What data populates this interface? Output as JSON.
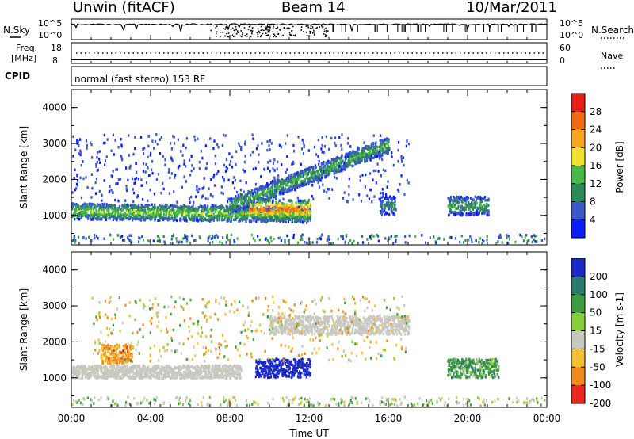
{
  "header": {
    "station": "Unwin (fitACF)",
    "beam": "Beam 14",
    "date": "10/Mar/2011"
  },
  "strips": {
    "nsky_label": "N.Sky",
    "nsearch_label": "N.Search",
    "nsky_scale": [
      "10^5",
      "10^0"
    ],
    "nsearch_scale": [
      "10^5",
      "10^0"
    ],
    "freq_label": "Freq.",
    "freq_unit": "[MHz]",
    "freq_scale": [
      "18",
      "8"
    ],
    "nave_label": "Nave",
    "nave_scale": [
      "60",
      "0"
    ],
    "cpid_label": "CPID",
    "cpid_text": "normal (fast stereo) 153 RF"
  },
  "chart_data": [
    {
      "type": "heatmap",
      "title": "Power",
      "ylabel": "Slant Range [km]",
      "xlabel": "",
      "xlim": [
        "00:00",
        "00:00"
      ],
      "ylim": [
        180,
        4500
      ],
      "y_ticks": [
        "1000",
        "2000",
        "3000",
        "4000"
      ],
      "colorbar": {
        "label": "Power [dB]",
        "ticks": [
          "4",
          "8",
          "12",
          "16",
          "20",
          "24",
          "28"
        ],
        "colors": [
          "#0a1eff",
          "#3a57c9",
          "#2e8a54",
          "#45b845",
          "#f0e12a",
          "#f7a51e",
          "#f06a14",
          "#e61e14"
        ]
      },
      "features": [
        {
          "name": "band",
          "t_start": 0.0,
          "t_end": 12.0,
          "range_start": 1150,
          "range_end": 1050,
          "power": 16
        },
        {
          "name": "upper band",
          "t_start": 8.0,
          "t_end": 16.0,
          "range_start": 1300,
          "range_end": 3000,
          "power": 14
        },
        {
          "name": "patch",
          "t_start": 9.0,
          "t_end": 12.0,
          "range": 1200,
          "power": 26
        },
        {
          "name": "patch",
          "t_start": 15.6,
          "t_end": 16.3,
          "range": 1300,
          "power": 10
        },
        {
          "name": "patch",
          "t_start": 19.0,
          "t_end": 21.0,
          "range": 1300,
          "power": 12
        }
      ]
    },
    {
      "type": "heatmap",
      "title": "Velocity",
      "ylabel": "Slant Range [km]",
      "xlabel": "Time UT",
      "x_ticks": [
        "00:00",
        "04:00",
        "08:00",
        "12:00",
        "16:00",
        "20:00",
        "00:00"
      ],
      "ylim": [
        180,
        4500
      ],
      "y_ticks": [
        "1000",
        "2000",
        "3000",
        "4000"
      ],
      "colorbar": {
        "label": "Velocity [m s-1]",
        "ticks": [
          "200",
          "100",
          "50",
          "15",
          "-15",
          "-50",
          "-100",
          "-200"
        ],
        "colors": [
          "#1a28c8",
          "#2a7a6e",
          "#3f9b3f",
          "#86cf3a",
          "#c8c8c0",
          "#f0c030",
          "#f08a1e",
          "#e8281e"
        ]
      },
      "features": [
        {
          "name": "ground scatter band",
          "t_start": 0.0,
          "t_end": 8.5,
          "range": 1200,
          "velocity": 0
        },
        {
          "name": "negative patch",
          "t_start": 1.5,
          "t_end": 3.0,
          "range": 1700,
          "velocity": -60
        },
        {
          "name": "strong positive",
          "t_start": 9.3,
          "t_end": 12.0,
          "range": 1300,
          "velocity": 200
        },
        {
          "name": "upper ground scatter",
          "t_start": 10.0,
          "t_end": 17.0,
          "range": 2500,
          "velocity": 0
        },
        {
          "name": "mixed patch",
          "t_start": 19.0,
          "t_end": 21.5,
          "range": 1300,
          "velocity": 50
        }
      ]
    }
  ]
}
